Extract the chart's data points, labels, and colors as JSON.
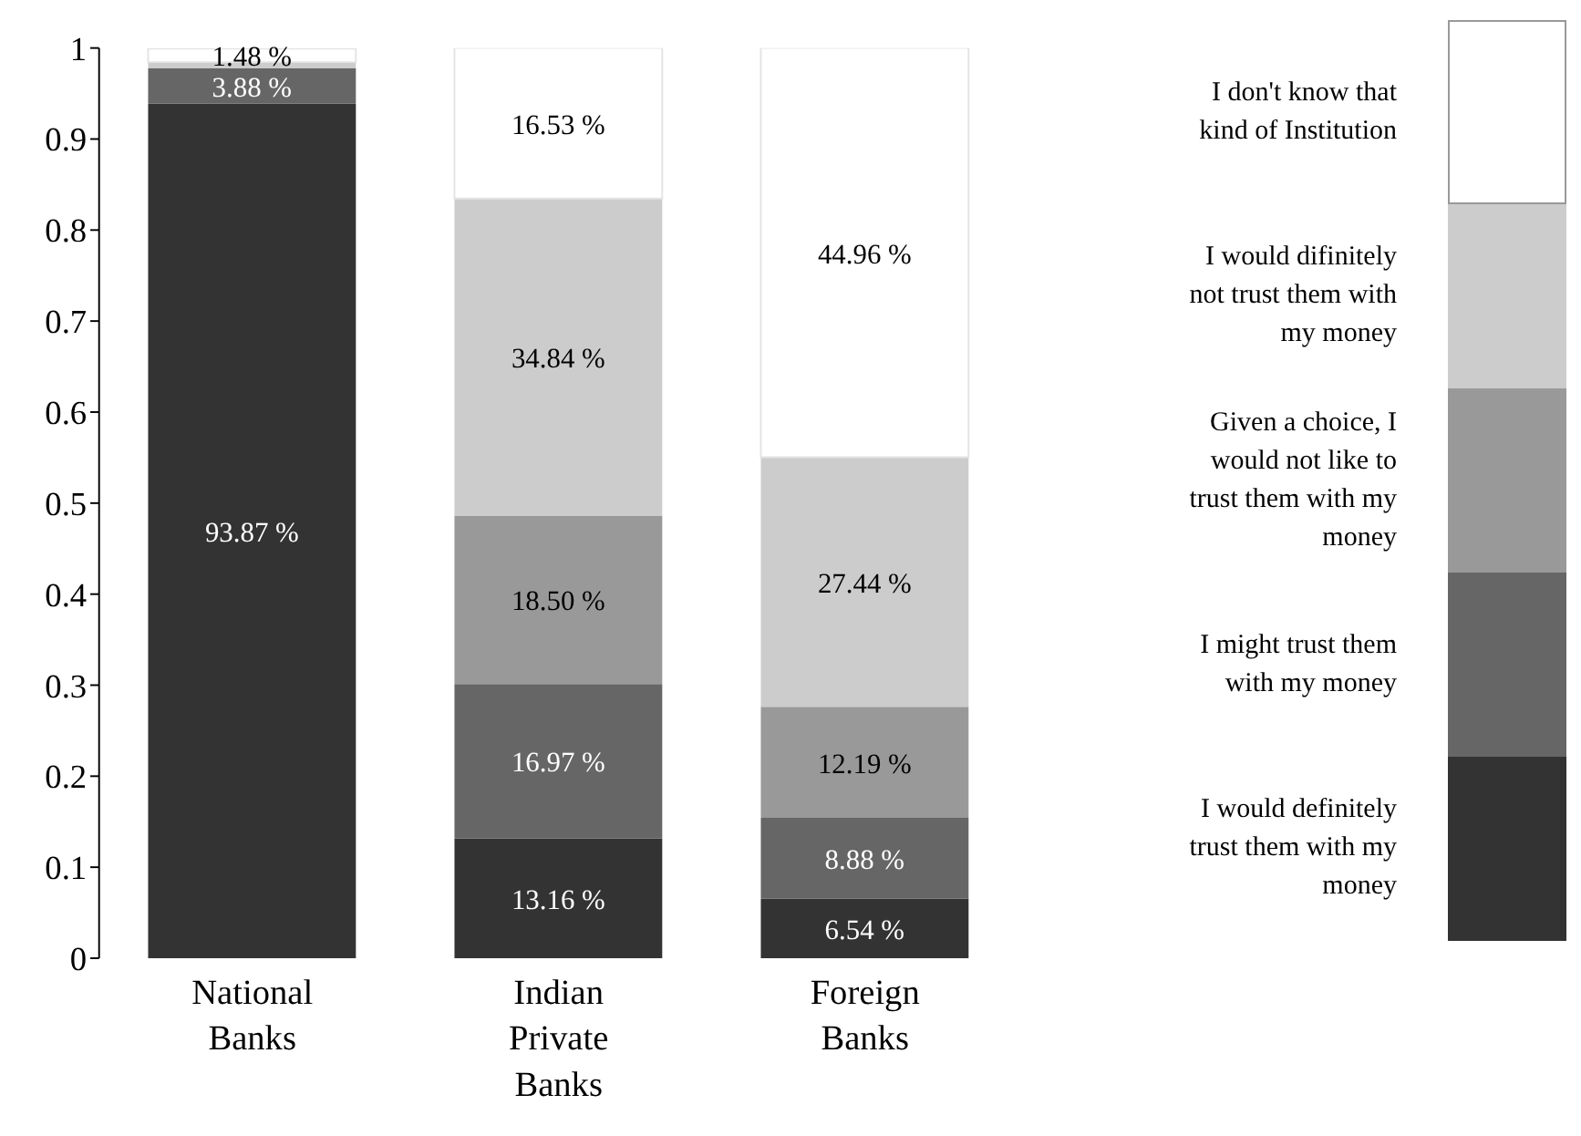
{
  "chart_data": {
    "type": "bar",
    "stacked": true,
    "categories": [
      "National Banks",
      "Indian Private Banks",
      "Foreign Banks"
    ],
    "series": [
      {
        "name": "I would definitely trust them with my money",
        "color": "#333333",
        "values": [
          0.9387,
          0.1316,
          0.0654
        ],
        "value_labels": [
          "93.87 %",
          "13.16 %",
          "6.54 %"
        ]
      },
      {
        "name": "I might trust them with my money",
        "color": "#666666",
        "values": [
          0.0388,
          0.1697,
          0.0888
        ],
        "value_labels": [
          "3.88 %",
          "16.97 %",
          "8.88 %"
        ]
      },
      {
        "name": "Given a choice, I would not like to trust them with my money",
        "color": "#999999",
        "values": [
          null,
          0.185,
          0.1219
        ],
        "value_labels": [
          null,
          "18.50 %",
          "12.19 %"
        ]
      },
      {
        "name": "I would difinitely not trust them with my money",
        "color": "#cccccc",
        "values": [
          0.007,
          0.3484,
          0.2744
        ],
        "value_labels": [
          null,
          "34.84 %",
          "27.44 %"
        ]
      },
      {
        "name": "I don't know that kind of Institution",
        "color": "#ffffff",
        "values": [
          0.0148,
          0.1653,
          0.4496
        ],
        "value_labels": [
          "1.48 %",
          "16.53 %",
          "44.96 %"
        ]
      }
    ],
    "ylim": [
      0,
      1
    ],
    "yticks": [
      0,
      0.1,
      0.2,
      0.3,
      0.4,
      0.5,
      0.6,
      0.7,
      0.8,
      0.9,
      1
    ],
    "grid": false,
    "legend": "right"
  }
}
